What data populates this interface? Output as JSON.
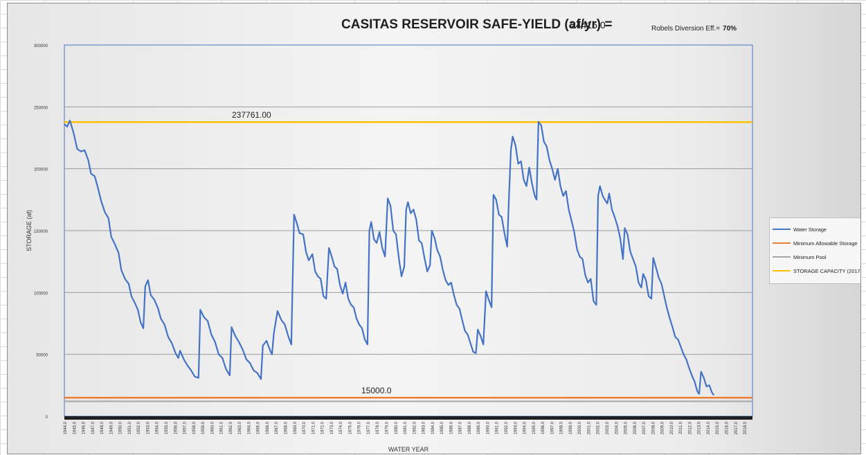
{
  "chart_data": {
    "type": "line",
    "title": "CASITAS RESERVOIR SAFE-YIELD (af/yr) =",
    "title_value": "24415.0",
    "robels_label": "Robels Diversion Eff.=",
    "robels_value": "70%",
    "xlabel": "WATER YEAR",
    "ylabel": "STORAGE (af)",
    "ylim": [
      0,
      300000
    ],
    "yticks": [
      0,
      50000,
      100000,
      150000,
      200000,
      250000,
      300000
    ],
    "ytick_labels": [
      "0",
      "50000",
      "100000",
      "150000",
      "200000",
      "250000",
      "300000"
    ],
    "x_categories": [
      "1944.0",
      "1945.0",
      "1946.0",
      "1947.0",
      "1948.0",
      "1949.0",
      "1950.0",
      "1951.0",
      "1952.0",
      "1953.0",
      "1954.0",
      "1955.0",
      "1956.0",
      "1957.0",
      "1958.0",
      "1959.0",
      "1960.0",
      "1961.0",
      "1962.0",
      "1963.0",
      "1964.0",
      "1965.0",
      "1966.0",
      "1967.0",
      "1968.0",
      "1969.0",
      "1970.0",
      "1971.0",
      "1972.0",
      "1973.0",
      "1974.0",
      "1975.0",
      "1976.0",
      "1977.0",
      "1978.0",
      "1979.0",
      "1980.0",
      "1981.0",
      "1982.0",
      "1983.0",
      "1984.0",
      "1985.0",
      "1986.0",
      "1987.0",
      "1988.0",
      "1989.0",
      "1990.0",
      "1991.0",
      "1992.0",
      "1993.0",
      "1994.0",
      "1995.0",
      "1996.0",
      "1997.0",
      "1998.0",
      "1999.0",
      "2000.0",
      "2001.0",
      "2002.0",
      "2003.0",
      "2004.0",
      "2005.0",
      "2006.0",
      "2007.0",
      "2008.0",
      "2009.0",
      "2010.0",
      "2011.0",
      "2012.0",
      "2013.0",
      "2014.0",
      "2015.0",
      "2016.0",
      "2017.0",
      "2018.0"
    ],
    "grid": true,
    "legend_position": "right",
    "series": [
      {
        "name": "Water Storage",
        "color": "#4472c4",
        "points": [
          [
            1944.0,
            236000
          ],
          [
            1944.3,
            234000
          ],
          [
            1944.6,
            239000
          ],
          [
            1945.0,
            229000
          ],
          [
            1945.4,
            216000
          ],
          [
            1945.8,
            214000
          ],
          [
            1946.2,
            215000
          ],
          [
            1946.6,
            207000
          ],
          [
            1946.9,
            196000
          ],
          [
            1947.3,
            194000
          ],
          [
            1947.6,
            186000
          ],
          [
            1948.0,
            174000
          ],
          [
            1948.4,
            165000
          ],
          [
            1948.8,
            160000
          ],
          [
            1949.1,
            145000
          ],
          [
            1949.5,
            139000
          ],
          [
            1949.9,
            132000
          ],
          [
            1950.2,
            118000
          ],
          [
            1950.6,
            111000
          ],
          [
            1951.0,
            107000
          ],
          [
            1951.3,
            97000
          ],
          [
            1951.7,
            91000
          ],
          [
            1952.0,
            86000
          ],
          [
            1952.3,
            76000
          ],
          [
            1952.6,
            71000
          ],
          [
            1952.8,
            105000
          ],
          [
            1953.1,
            110000
          ],
          [
            1953.4,
            98000
          ],
          [
            1953.8,
            94000
          ],
          [
            1954.2,
            87000
          ],
          [
            1954.5,
            79000
          ],
          [
            1954.9,
            74000
          ],
          [
            1955.3,
            64000
          ],
          [
            1955.7,
            59000
          ],
          [
            1956.1,
            51000
          ],
          [
            1956.4,
            47000
          ],
          [
            1956.6,
            53000
          ],
          [
            1957.0,
            46000
          ],
          [
            1957.4,
            41000
          ],
          [
            1957.8,
            37000
          ],
          [
            1958.2,
            32000
          ],
          [
            1958.6,
            31000
          ],
          [
            1958.8,
            86000
          ],
          [
            1959.2,
            80000
          ],
          [
            1959.6,
            77000
          ],
          [
            1960.0,
            66000
          ],
          [
            1960.4,
            60000
          ],
          [
            1960.8,
            50000
          ],
          [
            1961.2,
            47000
          ],
          [
            1961.6,
            38000
          ],
          [
            1962.0,
            33000
          ],
          [
            1962.2,
            72000
          ],
          [
            1962.6,
            65000
          ],
          [
            1963.0,
            60000
          ],
          [
            1963.4,
            54000
          ],
          [
            1963.8,
            46000
          ],
          [
            1964.2,
            43000
          ],
          [
            1964.6,
            37000
          ],
          [
            1965.0,
            35000
          ],
          [
            1965.4,
            30000
          ],
          [
            1965.6,
            57000
          ],
          [
            1966.0,
            61000
          ],
          [
            1966.4,
            53000
          ],
          [
            1966.6,
            50000
          ],
          [
            1966.8,
            67000
          ],
          [
            1967.2,
            85000
          ],
          [
            1967.6,
            78000
          ],
          [
            1968.0,
            74000
          ],
          [
            1968.4,
            64000
          ],
          [
            1968.7,
            58000
          ],
          [
            1969.0,
            163000
          ],
          [
            1969.3,
            156000
          ],
          [
            1969.6,
            148000
          ],
          [
            1970.0,
            147000
          ],
          [
            1970.3,
            133000
          ],
          [
            1970.6,
            126000
          ],
          [
            1971.0,
            131000
          ],
          [
            1971.3,
            117000
          ],
          [
            1971.6,
            113000
          ],
          [
            1971.9,
            111000
          ],
          [
            1972.2,
            97000
          ],
          [
            1972.5,
            95000
          ],
          [
            1972.8,
            136000
          ],
          [
            1973.1,
            129000
          ],
          [
            1973.4,
            121000
          ],
          [
            1973.7,
            119000
          ],
          [
            1974.0,
            106000
          ],
          [
            1974.3,
            99000
          ],
          [
            1974.6,
            108000
          ],
          [
            1974.9,
            95000
          ],
          [
            1975.2,
            90000
          ],
          [
            1975.5,
            88000
          ],
          [
            1975.8,
            79000
          ],
          [
            1976.1,
            74000
          ],
          [
            1976.4,
            71000
          ],
          [
            1976.7,
            62000
          ],
          [
            1977.0,
            58000
          ],
          [
            1977.2,
            150000
          ],
          [
            1977.4,
            157000
          ],
          [
            1977.7,
            143000
          ],
          [
            1978.0,
            140000
          ],
          [
            1978.3,
            149000
          ],
          [
            1978.6,
            136000
          ],
          [
            1978.9,
            129000
          ],
          [
            1979.2,
            176000
          ],
          [
            1979.5,
            170000
          ],
          [
            1979.8,
            150000
          ],
          [
            1980.1,
            147000
          ],
          [
            1980.4,
            128000
          ],
          [
            1980.7,
            113000
          ],
          [
            1981.0,
            121000
          ],
          [
            1981.2,
            167000
          ],
          [
            1981.4,
            173000
          ],
          [
            1981.7,
            164000
          ],
          [
            1982.0,
            167000
          ],
          [
            1982.3,
            159000
          ],
          [
            1982.6,
            142000
          ],
          [
            1982.9,
            140000
          ],
          [
            1983.2,
            128000
          ],
          [
            1983.5,
            117000
          ],
          [
            1983.8,
            122000
          ],
          [
            1984.0,
            150000
          ],
          [
            1984.3,
            144000
          ],
          [
            1984.6,
            134000
          ],
          [
            1984.9,
            129000
          ],
          [
            1985.2,
            118000
          ],
          [
            1985.5,
            110000
          ],
          [
            1985.8,
            106000
          ],
          [
            1986.1,
            108000
          ],
          [
            1986.4,
            98000
          ],
          [
            1986.7,
            90000
          ],
          [
            1987.0,
            87000
          ],
          [
            1987.3,
            78000
          ],
          [
            1987.6,
            69000
          ],
          [
            1987.9,
            66000
          ],
          [
            1988.2,
            59000
          ],
          [
            1988.5,
            52000
          ],
          [
            1988.8,
            51000
          ],
          [
            1989.0,
            70000
          ],
          [
            1989.3,
            65000
          ],
          [
            1989.6,
            58000
          ],
          [
            1989.9,
            101000
          ],
          [
            1990.2,
            94000
          ],
          [
            1990.5,
            88000
          ],
          [
            1990.7,
            179000
          ],
          [
            1991.0,
            175000
          ],
          [
            1991.3,
            163000
          ],
          [
            1991.6,
            161000
          ],
          [
            1991.9,
            148000
          ],
          [
            1992.2,
            137000
          ],
          [
            1992.4,
            178000
          ],
          [
            1992.6,
            215000
          ],
          [
            1992.8,
            226000
          ],
          [
            1993.1,
            219000
          ],
          [
            1993.4,
            204000
          ],
          [
            1993.7,
            206000
          ],
          [
            1994.0,
            191000
          ],
          [
            1994.3,
            186000
          ],
          [
            1994.6,
            201000
          ],
          [
            1994.9,
            188000
          ],
          [
            1995.2,
            178000
          ],
          [
            1995.4,
            175000
          ],
          [
            1995.6,
            238000
          ],
          [
            1995.9,
            235000
          ],
          [
            1996.2,
            222000
          ],
          [
            1996.5,
            218000
          ],
          [
            1996.8,
            207000
          ],
          [
            1997.1,
            200000
          ],
          [
            1997.4,
            191000
          ],
          [
            1997.7,
            200000
          ],
          [
            1998.0,
            186000
          ],
          [
            1998.3,
            178000
          ],
          [
            1998.6,
            182000
          ],
          [
            1998.9,
            167000
          ],
          [
            1999.2,
            158000
          ],
          [
            1999.5,
            149000
          ],
          [
            1999.8,
            135000
          ],
          [
            2000.1,
            129000
          ],
          [
            2000.4,
            127000
          ],
          [
            2000.7,
            114000
          ],
          [
            2001.0,
            108000
          ],
          [
            2001.3,
            111000
          ],
          [
            2001.6,
            93000
          ],
          [
            2001.9,
            90000
          ],
          [
            2002.1,
            178000
          ],
          [
            2002.3,
            186000
          ],
          [
            2002.6,
            178000
          ],
          [
            2002.9,
            174000
          ],
          [
            2003.1,
            172000
          ],
          [
            2003.3,
            180000
          ],
          [
            2003.6,
            167000
          ],
          [
            2003.9,
            161000
          ],
          [
            2004.2,
            154000
          ],
          [
            2004.5,
            144000
          ],
          [
            2004.8,
            127000
          ],
          [
            2005.0,
            152000
          ],
          [
            2005.3,
            147000
          ],
          [
            2005.6,
            133000
          ],
          [
            2005.9,
            127000
          ],
          [
            2006.2,
            121000
          ],
          [
            2006.5,
            108000
          ],
          [
            2006.8,
            104000
          ],
          [
            2007.0,
            115000
          ],
          [
            2007.3,
            110000
          ],
          [
            2007.6,
            97000
          ],
          [
            2007.9,
            95000
          ],
          [
            2008.1,
            128000
          ],
          [
            2008.4,
            120000
          ],
          [
            2008.7,
            112000
          ],
          [
            2009.0,
            107000
          ],
          [
            2009.3,
            97000
          ],
          [
            2009.6,
            87000
          ],
          [
            2009.9,
            79000
          ],
          [
            2010.2,
            72000
          ],
          [
            2010.5,
            64000
          ],
          [
            2010.8,
            62000
          ],
          [
            2011.1,
            56000
          ],
          [
            2011.4,
            50000
          ],
          [
            2011.7,
            46000
          ],
          [
            2012.0,
            39000
          ],
          [
            2012.3,
            33000
          ],
          [
            2012.6,
            28000
          ],
          [
            2012.9,
            20000
          ],
          [
            2013.1,
            18000
          ],
          [
            2013.3,
            36000
          ],
          [
            2013.6,
            31000
          ],
          [
            2013.9,
            24000
          ],
          [
            2014.2,
            25000
          ],
          [
            2014.5,
            19000
          ],
          [
            2014.7,
            17000
          ]
        ]
      },
      {
        "name": "Minimum Allowable Storage",
        "color": "#ed7d31",
        "constant": 15000
      },
      {
        "name": "Minimum Pool",
        "color": "#a5a5a5",
        "constant": 12000
      },
      {
        "name": "STORAGE CAPACITY (2017)",
        "color": "#ffc000",
        "constant": 237761
      }
    ],
    "annotations": [
      {
        "text": "237761.00",
        "y": 237761
      },
      {
        "text": "15000.0",
        "y": 15000
      }
    ]
  }
}
